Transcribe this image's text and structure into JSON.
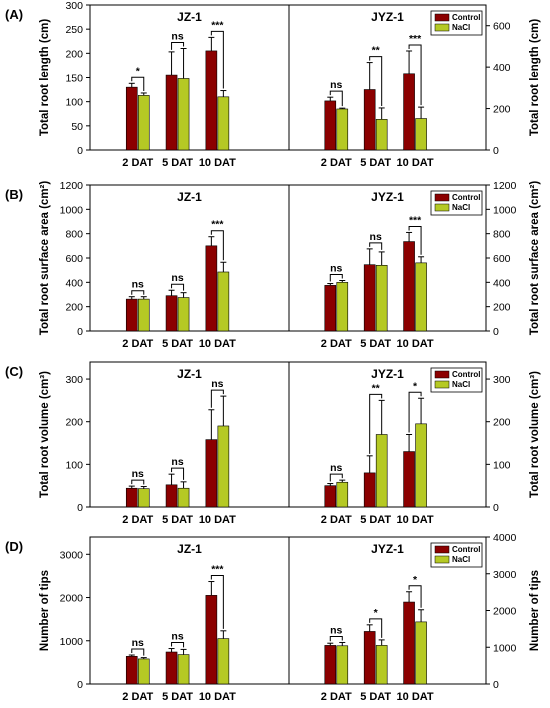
{
  "colors": {
    "control": "#8b0000",
    "nacl": "#b5c924"
  },
  "chart_data": [
    {
      "type": "bar",
      "label": "(A)",
      "ylabel_left": "Total root length (cm)",
      "ylim_left": [
        0,
        300
      ],
      "yticks_left": [
        0,
        50,
        100,
        150,
        200,
        250,
        300
      ],
      "ylabel_right": "Total root length (cm)",
      "ylim_right": [
        0,
        700
      ],
      "yticks_right": [
        0,
        200,
        400,
        600
      ],
      "legend_in": "right",
      "legend": [
        "Control",
        "NaCl"
      ],
      "panels": [
        {
          "title": "JZ-1",
          "categories": [
            "2 DAT",
            "5 DAT",
            "10 DAT"
          ],
          "series": [
            {
              "name": "Control",
              "values": [
                130,
                155,
                205
              ],
              "err": [
                8,
                48,
                28
              ]
            },
            {
              "name": "NaCl",
              "values": [
                113,
                148,
                110
              ],
              "err": [
                5,
                62,
                13
              ]
            }
          ],
          "sig": [
            "*",
            "ns",
            "***"
          ]
        },
        {
          "title": "JYZ-1",
          "categories": [
            "2 DAT",
            "5 DAT",
            "10 DAT"
          ],
          "series": [
            {
              "name": "Control",
              "values": [
                237,
                292,
                368
              ],
              "err": [
                18,
                130,
                110
              ]
            },
            {
              "name": "NaCl",
              "values": [
                198,
                148,
                152
              ],
              "err": [
                4,
                55,
                55
              ]
            }
          ],
          "sig": [
            "ns",
            "**",
            "***"
          ]
        }
      ]
    },
    {
      "type": "bar",
      "label": "(B)",
      "ylabel_left": "Total root surface area (cm²)",
      "ylim_left": [
        0,
        1200
      ],
      "yticks_left": [
        0,
        200,
        400,
        600,
        800,
        1000,
        1200
      ],
      "ylabel_right": "Total root surface area (cm²)",
      "ylim_right": [
        0,
        1200
      ],
      "yticks_right": [
        0,
        200,
        400,
        600,
        800,
        1000,
        1200
      ],
      "legend_in": "right",
      "legend": [
        "Control",
        "NaCl"
      ],
      "panels": [
        {
          "title": "JZ-1",
          "categories": [
            "2 DAT",
            "5 DAT",
            "10 DAT"
          ],
          "series": [
            {
              "name": "Control",
              "values": [
                262,
                290,
                700
              ],
              "err": [
                20,
                45,
                75
              ]
            },
            {
              "name": "NaCl",
              "values": [
                262,
                275,
                485
              ],
              "err": [
                20,
                40,
                80
              ]
            }
          ],
          "sig": [
            "ns",
            "ns",
            "***"
          ]
        },
        {
          "title": "JYZ-1",
          "categories": [
            "2 DAT",
            "5 DAT",
            "10 DAT"
          ],
          "series": [
            {
              "name": "Control",
              "values": [
                375,
                545,
                735
              ],
              "err": [
                15,
                130,
                75
              ]
            },
            {
              "name": "NaCl",
              "values": [
                400,
                540,
                560
              ],
              "err": [
                15,
                110,
                50
              ]
            }
          ],
          "sig": [
            "ns",
            "ns",
            "***"
          ]
        }
      ]
    },
    {
      "type": "bar",
      "label": "(C)",
      "ylabel_left": "Total root volume (cm³)",
      "ylim_left": [
        0,
        340
      ],
      "yticks_left": [
        0,
        100,
        200,
        300
      ],
      "ylabel_right": "Total root volume (cm³)",
      "ylim_right": [
        0,
        340
      ],
      "yticks_right": [
        0,
        100,
        200,
        300
      ],
      "legend_in": "right",
      "legend": [
        "Control",
        "NaCl"
      ],
      "panels": [
        {
          "title": "JZ-1",
          "categories": [
            "2 DAT",
            "5 DAT",
            "10 DAT"
          ],
          "series": [
            {
              "name": "Control",
              "values": [
                44,
                52,
                158
              ],
              "err": [
                5,
                25,
                70
              ]
            },
            {
              "name": "NaCl",
              "values": [
                43,
                44,
                190
              ],
              "err": [
                5,
                15,
                70
              ]
            }
          ],
          "sig": [
            "ns",
            "ns",
            "ns"
          ]
        },
        {
          "title": "JYZ-1",
          "categories": [
            "2 DAT",
            "5 DAT",
            "10 DAT"
          ],
          "series": [
            {
              "name": "Control",
              "values": [
                50,
                80,
                130
              ],
              "err": [
                5,
                40,
                40
              ]
            },
            {
              "name": "NaCl",
              "values": [
                58,
                170,
                195
              ],
              "err": [
                5,
                80,
                60
              ]
            }
          ],
          "sig": [
            "ns",
            "**",
            "*"
          ]
        }
      ]
    },
    {
      "type": "bar",
      "label": "(D)",
      "ylabel_left": "Number of tips",
      "ylim_left": [
        0,
        3400
      ],
      "yticks_left": [
        0,
        1000,
        2000,
        3000
      ],
      "ylabel_right": "Number of tips",
      "ylim_right": [
        0,
        4000
      ],
      "yticks_right": [
        0,
        1000,
        2000,
        3000,
        4000
      ],
      "legend_in": "right",
      "legend": [
        "Control",
        "NaCl"
      ],
      "panels": [
        {
          "title": "JZ-1",
          "categories": [
            "2 DAT",
            "5 DAT",
            "10 DAT"
          ],
          "series": [
            {
              "name": "Control",
              "values": [
                640,
                740,
                2050
              ],
              "err": [
                30,
                80,
                320
              ]
            },
            {
              "name": "NaCl",
              "values": [
                580,
                680,
                1050
              ],
              "err": [
                30,
                120,
                180
              ]
            }
          ],
          "sig": [
            "ns",
            "ns",
            "***"
          ]
        },
        {
          "title": "JYZ-1",
          "categories": [
            "2 DAT",
            "5 DAT",
            "10 DAT"
          ],
          "series": [
            {
              "name": "Control",
              "values": [
                1050,
                1430,
                2230
              ],
              "err": [
                60,
                180,
                280
              ]
            },
            {
              "name": "NaCl",
              "values": [
                1040,
                1050,
                1690
              ],
              "err": [
                90,
                150,
                330
              ]
            }
          ],
          "sig": [
            "ns",
            "*",
            "*"
          ]
        }
      ]
    }
  ]
}
